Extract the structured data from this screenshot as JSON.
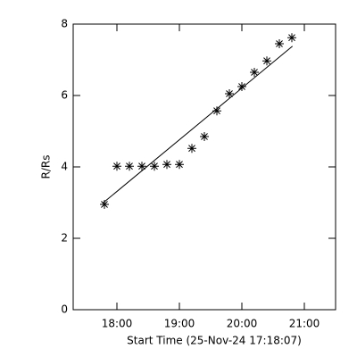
{
  "chart_data": {
    "type": "scatter",
    "x_label": "Start Time (25-Nov-24 17:18:07)",
    "y_label": "R/Rs",
    "xlim": [
      17.3,
      21.5
    ],
    "ylim": [
      0,
      8
    ],
    "xticks": [
      {
        "value": 18,
        "label": "18:00"
      },
      {
        "value": 19,
        "label": "19:00"
      },
      {
        "value": 20,
        "label": "20:00"
      },
      {
        "value": 21,
        "label": "21:00"
      }
    ],
    "yticks": [
      0,
      2,
      4,
      6,
      8
    ],
    "series": [
      {
        "marker": "asterisk",
        "color": "#000000",
        "x": [
          17.8,
          18.0,
          18.2,
          18.4,
          18.6,
          18.8,
          19.0,
          19.2,
          19.4,
          19.6,
          19.8,
          20.0,
          20.2,
          20.4,
          20.6,
          20.8
        ],
        "values": [
          2.95,
          4.02,
          4.02,
          4.02,
          4.02,
          4.07,
          4.07,
          4.52,
          4.85,
          5.57,
          6.05,
          6.25,
          6.65,
          6.97,
          7.45,
          7.62
        ]
      },
      {
        "marker": "line",
        "color": "#000000",
        "x": [
          17.77,
          20.81
        ],
        "values": [
          2.98,
          7.38
        ]
      }
    ]
  }
}
